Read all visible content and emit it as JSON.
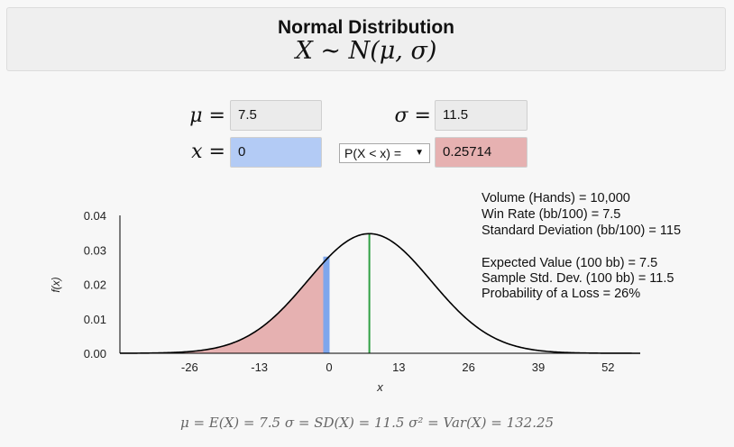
{
  "header": {
    "title": "Normal Distribution",
    "formula": "X ∼ N(μ, σ)"
  },
  "inputs": {
    "mu_label": "μ =",
    "mu_value": "7.5",
    "sigma_label": "σ =",
    "sigma_value": "11.5",
    "x_label": "x =",
    "x_value": "0",
    "select_value": "P(X < x) =",
    "result_value": "0.25714"
  },
  "info": {
    "lines": [
      "Volume (Hands) = 10,000",
      "Win Rate (bb/100) = 7.5",
      "Standard Deviation (bb/100) = 115",
      "Expected Value (100 bb) = 7.5",
      "Sample Std. Dev. (100 bb) = 11.5",
      "Probability of a Loss = 26%"
    ]
  },
  "footer": {
    "text": "μ = E(X) = 7.5    σ = SD(X) = 11.5    σ² = Var(X) = 132.25"
  },
  "colors": {
    "shade": "#e6b1b1",
    "x_marker": "#7ea6ec",
    "mean_line": "#2fa043",
    "curve": "#000000"
  },
  "chart_data": {
    "type": "area",
    "distribution": "normal",
    "mean": 7.5,
    "sd": 11.5,
    "x_marker": 0,
    "shaded_region": "x < 0",
    "xlabel": "x",
    "ylabel": "f(x)",
    "xlim": [
      -39,
      58
    ],
    "ylim": [
      0,
      0.04
    ],
    "xticks": [
      -26,
      -13,
      0,
      13,
      26,
      39,
      52
    ],
    "yticks": [
      "0.00",
      "0.01",
      "0.02",
      "0.03",
      "0.04"
    ],
    "grid": false
  }
}
